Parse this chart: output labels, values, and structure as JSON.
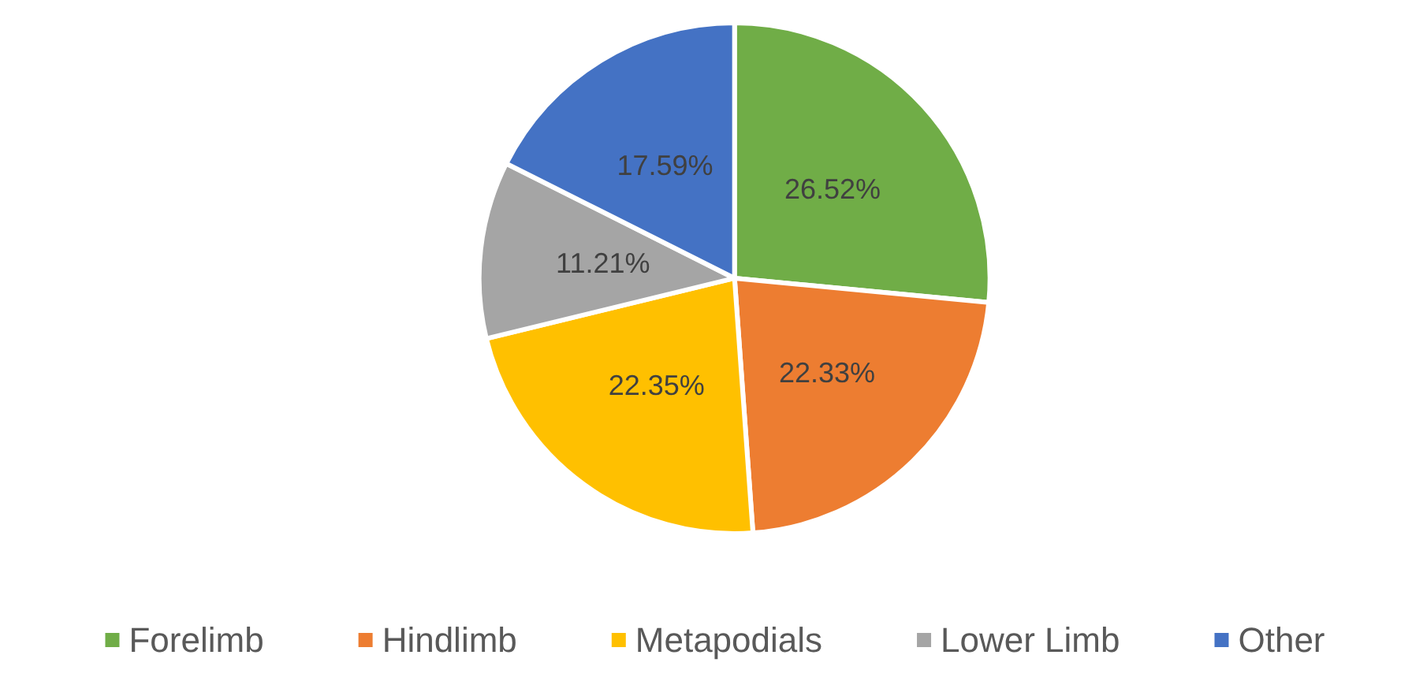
{
  "chart_data": {
    "type": "pie",
    "categories": [
      "Forelimb",
      "Hindlimb",
      "Metapodials",
      "Lower Limb",
      "Other"
    ],
    "values": [
      26.52,
      22.33,
      22.35,
      11.21,
      17.59
    ],
    "colors": [
      "#70ad47",
      "#ed7d31",
      "#ffc000",
      "#a5a5a5",
      "#4472c4"
    ],
    "value_labels": [
      "26.52%",
      "22.33%",
      "22.35%",
      "11.21%",
      "17.59%"
    ],
    "legend": "bottom"
  }
}
